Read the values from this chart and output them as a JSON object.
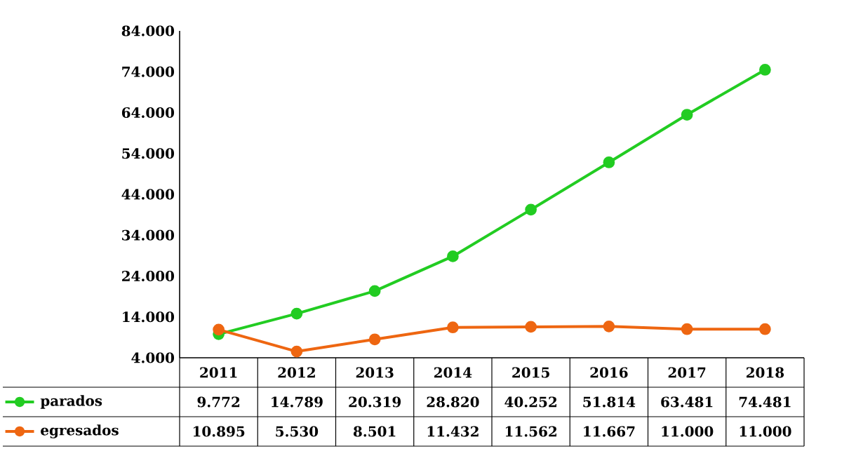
{
  "chart_data": {
    "type": "line",
    "categories": [
      "2011",
      "2012",
      "2013",
      "2014",
      "2015",
      "2016",
      "2017",
      "2018"
    ],
    "series": [
      {
        "name": "parados",
        "color": "#22cc22",
        "values": [
          9772,
          14789,
          20319,
          28820,
          40252,
          51814,
          63481,
          74481
        ],
        "value_labels": [
          "9.772",
          "14.789",
          "20.319",
          "28.820",
          "40.252",
          "51.814",
          "63.481",
          "74.481"
        ]
      },
      {
        "name": "egresados",
        "color": "#ee6611",
        "values": [
          10895,
          5530,
          8501,
          11432,
          11562,
          11667,
          11000,
          11000
        ],
        "value_labels": [
          "10.895",
          "5.530",
          "8.501",
          "11.432",
          "11.562",
          "11.667",
          "11.000",
          "11.000"
        ]
      }
    ],
    "ylim": [
      4000,
      84000
    ],
    "yticks": [
      {
        "value": 4000,
        "label": "4.000"
      },
      {
        "value": 14000,
        "label": "14.000"
      },
      {
        "value": 24000,
        "label": "24.000"
      },
      {
        "value": 34000,
        "label": "34.000"
      },
      {
        "value": 44000,
        "label": "44.000"
      },
      {
        "value": 54000,
        "label": "54.000"
      },
      {
        "value": 64000,
        "label": "64.000"
      },
      {
        "value": 74000,
        "label": "74.000"
      },
      {
        "value": 84000,
        "label": "84.000"
      }
    ],
    "marker": "circle",
    "line_style": "solid",
    "grid": false,
    "legend": "bottom"
  }
}
